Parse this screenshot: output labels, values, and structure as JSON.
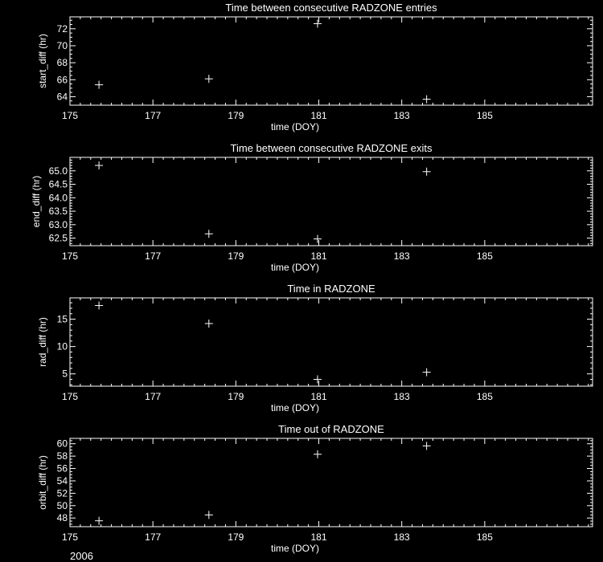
{
  "colors": {
    "background": "#000000",
    "foreground": "#ffffff"
  },
  "footer_label": "2006",
  "chart_data": [
    {
      "type": "scatter",
      "title": "Time between consecutive RADZONE entries",
      "xlabel": "time (DOY)",
      "ylabel": "start_diff (hr)",
      "xlim": [
        175,
        187.6
      ],
      "ylim": [
        63.0,
        73.4
      ],
      "xticks": [
        175,
        177,
        179,
        181,
        183,
        185
      ],
      "xtick_labels": [
        "175",
        "177",
        "179",
        "181",
        "183",
        "185"
      ],
      "yticks": [
        64,
        66,
        68,
        70,
        72
      ],
      "yminor": 0.5,
      "marker": "plus",
      "grid": false,
      "x": [
        175.7,
        178.35,
        180.97,
        183.6
      ],
      "y": [
        65.4,
        66.1,
        72.6,
        63.7
      ]
    },
    {
      "type": "scatter",
      "title": "Time between consecutive RADZONE exits",
      "xlabel": "time (DOY)",
      "ylabel": "end_diff (hr)",
      "xlim": [
        175,
        187.6
      ],
      "ylim": [
        62.22,
        65.5
      ],
      "xticks": [
        175,
        177,
        179,
        181,
        183,
        185
      ],
      "xtick_labels": [
        "175",
        "177",
        "179",
        "181",
        "183",
        "185"
      ],
      "yticks": [
        62.5,
        63.0,
        63.5,
        64.0,
        64.5,
        65.0
      ],
      "ytick_labels": [
        "62.5",
        "63.0",
        "63.5",
        "64.0",
        "64.5",
        "65.0"
      ],
      "yminor": 0.1,
      "marker": "plus",
      "grid": false,
      "x": [
        175.7,
        178.35,
        180.97,
        183.6
      ],
      "y": [
        65.2,
        62.66,
        62.47,
        64.97
      ]
    },
    {
      "type": "scatter",
      "title": "Time in RADZONE",
      "xlabel": "time (DOY)",
      "ylabel": "rad_diff (hr)",
      "xlim": [
        175,
        187.6
      ],
      "ylim": [
        2.75,
        18.9
      ],
      "xticks": [
        175,
        177,
        179,
        181,
        183,
        185
      ],
      "xtick_labels": [
        "175",
        "177",
        "179",
        "181",
        "183",
        "185"
      ],
      "yticks": [
        5,
        10,
        15
      ],
      "yminor": 1,
      "marker": "plus",
      "grid": false,
      "x": [
        175.7,
        178.35,
        180.97,
        183.6
      ],
      "y": [
        17.5,
        14.2,
        4.0,
        5.3
      ]
    },
    {
      "type": "scatter",
      "title": "Time out of RADZONE",
      "xlabel": "time (DOY)",
      "ylabel": "orbit_diff (hr)",
      "xlim": [
        175,
        187.6
      ],
      "ylim": [
        46.6,
        60.87
      ],
      "xticks": [
        175,
        177,
        179,
        181,
        183,
        185
      ],
      "xtick_labels": [
        "175",
        "177",
        "179",
        "181",
        "183",
        "185"
      ],
      "yticks": [
        48,
        50,
        52,
        54,
        56,
        58,
        60
      ],
      "yminor": 0.5,
      "marker": "plus",
      "grid": false,
      "x": [
        175.7,
        178.35,
        180.97,
        183.6
      ],
      "y": [
        47.55,
        48.5,
        58.3,
        59.65
      ]
    }
  ]
}
